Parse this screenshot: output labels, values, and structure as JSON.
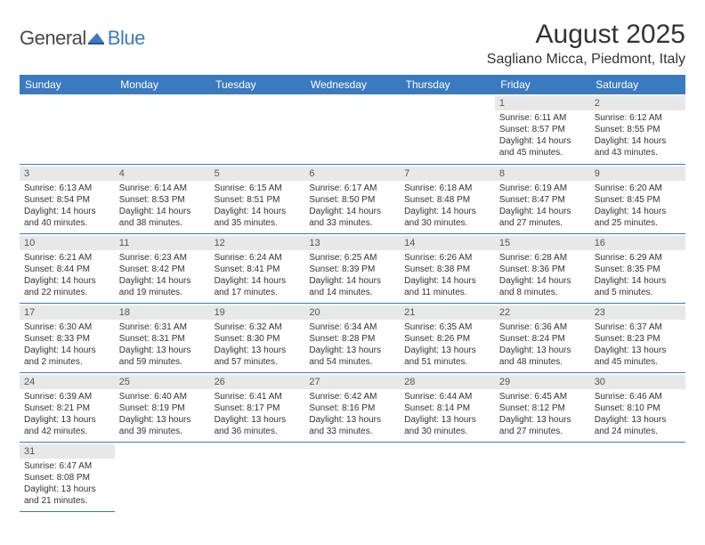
{
  "logo": {
    "word1": "General",
    "word2": "Blue"
  },
  "title": "August 2025",
  "location": "Sagliano Micca, Piedmont, Italy",
  "colors": {
    "accent": "#3a7bbf",
    "header_text": "#ffffff",
    "day_bg": "#e8e8e8",
    "row_divider": "#c9c9c9",
    "text": "#333333",
    "logo_gray": "#4a4a4a"
  },
  "weekdays": [
    "Sunday",
    "Monday",
    "Tuesday",
    "Wednesday",
    "Thursday",
    "Friday",
    "Saturday"
  ],
  "weeks": [
    [
      null,
      null,
      null,
      null,
      null,
      {
        "d": "1",
        "sr": "Sunrise: 6:11 AM",
        "ss": "Sunset: 8:57 PM",
        "dl1": "Daylight: 14 hours",
        "dl2": "and 45 minutes."
      },
      {
        "d": "2",
        "sr": "Sunrise: 6:12 AM",
        "ss": "Sunset: 8:55 PM",
        "dl1": "Daylight: 14 hours",
        "dl2": "and 43 minutes."
      }
    ],
    [
      {
        "d": "3",
        "sr": "Sunrise: 6:13 AM",
        "ss": "Sunset: 8:54 PM",
        "dl1": "Daylight: 14 hours",
        "dl2": "and 40 minutes."
      },
      {
        "d": "4",
        "sr": "Sunrise: 6:14 AM",
        "ss": "Sunset: 8:53 PM",
        "dl1": "Daylight: 14 hours",
        "dl2": "and 38 minutes."
      },
      {
        "d": "5",
        "sr": "Sunrise: 6:15 AM",
        "ss": "Sunset: 8:51 PM",
        "dl1": "Daylight: 14 hours",
        "dl2": "and 35 minutes."
      },
      {
        "d": "6",
        "sr": "Sunrise: 6:17 AM",
        "ss": "Sunset: 8:50 PM",
        "dl1": "Daylight: 14 hours",
        "dl2": "and 33 minutes."
      },
      {
        "d": "7",
        "sr": "Sunrise: 6:18 AM",
        "ss": "Sunset: 8:48 PM",
        "dl1": "Daylight: 14 hours",
        "dl2": "and 30 minutes."
      },
      {
        "d": "8",
        "sr": "Sunrise: 6:19 AM",
        "ss": "Sunset: 8:47 PM",
        "dl1": "Daylight: 14 hours",
        "dl2": "and 27 minutes."
      },
      {
        "d": "9",
        "sr": "Sunrise: 6:20 AM",
        "ss": "Sunset: 8:45 PM",
        "dl1": "Daylight: 14 hours",
        "dl2": "and 25 minutes."
      }
    ],
    [
      {
        "d": "10",
        "sr": "Sunrise: 6:21 AM",
        "ss": "Sunset: 8:44 PM",
        "dl1": "Daylight: 14 hours",
        "dl2": "and 22 minutes."
      },
      {
        "d": "11",
        "sr": "Sunrise: 6:23 AM",
        "ss": "Sunset: 8:42 PM",
        "dl1": "Daylight: 14 hours",
        "dl2": "and 19 minutes."
      },
      {
        "d": "12",
        "sr": "Sunrise: 6:24 AM",
        "ss": "Sunset: 8:41 PM",
        "dl1": "Daylight: 14 hours",
        "dl2": "and 17 minutes."
      },
      {
        "d": "13",
        "sr": "Sunrise: 6:25 AM",
        "ss": "Sunset: 8:39 PM",
        "dl1": "Daylight: 14 hours",
        "dl2": "and 14 minutes."
      },
      {
        "d": "14",
        "sr": "Sunrise: 6:26 AM",
        "ss": "Sunset: 8:38 PM",
        "dl1": "Daylight: 14 hours",
        "dl2": "and 11 minutes."
      },
      {
        "d": "15",
        "sr": "Sunrise: 6:28 AM",
        "ss": "Sunset: 8:36 PM",
        "dl1": "Daylight: 14 hours",
        "dl2": "and 8 minutes."
      },
      {
        "d": "16",
        "sr": "Sunrise: 6:29 AM",
        "ss": "Sunset: 8:35 PM",
        "dl1": "Daylight: 14 hours",
        "dl2": "and 5 minutes."
      }
    ],
    [
      {
        "d": "17",
        "sr": "Sunrise: 6:30 AM",
        "ss": "Sunset: 8:33 PM",
        "dl1": "Daylight: 14 hours",
        "dl2": "and 2 minutes."
      },
      {
        "d": "18",
        "sr": "Sunrise: 6:31 AM",
        "ss": "Sunset: 8:31 PM",
        "dl1": "Daylight: 13 hours",
        "dl2": "and 59 minutes."
      },
      {
        "d": "19",
        "sr": "Sunrise: 6:32 AM",
        "ss": "Sunset: 8:30 PM",
        "dl1": "Daylight: 13 hours",
        "dl2": "and 57 minutes."
      },
      {
        "d": "20",
        "sr": "Sunrise: 6:34 AM",
        "ss": "Sunset: 8:28 PM",
        "dl1": "Daylight: 13 hours",
        "dl2": "and 54 minutes."
      },
      {
        "d": "21",
        "sr": "Sunrise: 6:35 AM",
        "ss": "Sunset: 8:26 PM",
        "dl1": "Daylight: 13 hours",
        "dl2": "and 51 minutes."
      },
      {
        "d": "22",
        "sr": "Sunrise: 6:36 AM",
        "ss": "Sunset: 8:24 PM",
        "dl1": "Daylight: 13 hours",
        "dl2": "and 48 minutes."
      },
      {
        "d": "23",
        "sr": "Sunrise: 6:37 AM",
        "ss": "Sunset: 8:23 PM",
        "dl1": "Daylight: 13 hours",
        "dl2": "and 45 minutes."
      }
    ],
    [
      {
        "d": "24",
        "sr": "Sunrise: 6:39 AM",
        "ss": "Sunset: 8:21 PM",
        "dl1": "Daylight: 13 hours",
        "dl2": "and 42 minutes."
      },
      {
        "d": "25",
        "sr": "Sunrise: 6:40 AM",
        "ss": "Sunset: 8:19 PM",
        "dl1": "Daylight: 13 hours",
        "dl2": "and 39 minutes."
      },
      {
        "d": "26",
        "sr": "Sunrise: 6:41 AM",
        "ss": "Sunset: 8:17 PM",
        "dl1": "Daylight: 13 hours",
        "dl2": "and 36 minutes."
      },
      {
        "d": "27",
        "sr": "Sunrise: 6:42 AM",
        "ss": "Sunset: 8:16 PM",
        "dl1": "Daylight: 13 hours",
        "dl2": "and 33 minutes."
      },
      {
        "d": "28",
        "sr": "Sunrise: 6:44 AM",
        "ss": "Sunset: 8:14 PM",
        "dl1": "Daylight: 13 hours",
        "dl2": "and 30 minutes."
      },
      {
        "d": "29",
        "sr": "Sunrise: 6:45 AM",
        "ss": "Sunset: 8:12 PM",
        "dl1": "Daylight: 13 hours",
        "dl2": "and 27 minutes."
      },
      {
        "d": "30",
        "sr": "Sunrise: 6:46 AM",
        "ss": "Sunset: 8:10 PM",
        "dl1": "Daylight: 13 hours",
        "dl2": "and 24 minutes."
      }
    ],
    [
      {
        "d": "31",
        "sr": "Sunrise: 6:47 AM",
        "ss": "Sunset: 8:08 PM",
        "dl1": "Daylight: 13 hours",
        "dl2": "and 21 minutes."
      },
      null,
      null,
      null,
      null,
      null,
      null
    ]
  ]
}
